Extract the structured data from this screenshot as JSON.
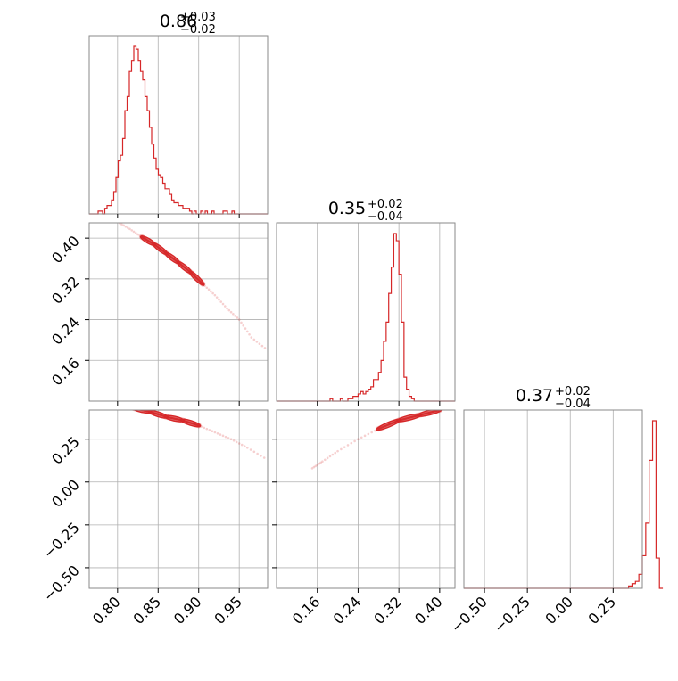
{
  "chart_data": {
    "type": "corner",
    "color": "#d62728",
    "grid": true,
    "parameters": [
      {
        "title_value": "0.86",
        "title_plus": "+0.03",
        "title_minus": "−0.02",
        "range": [
          0.765,
          0.985
        ]
      },
      {
        "title_value": "0.35",
        "title_plus": "+0.02",
        "title_minus": "−0.04",
        "range": [
          0.08,
          0.43
        ]
      },
      {
        "title_value": "0.37",
        "title_plus": "+0.02",
        "title_minus": "−0.04",
        "range": [
          -0.62,
          0.42
        ]
      }
    ],
    "ticks": {
      "p0": [
        {
          "v": 0.8,
          "label": "0.80"
        },
        {
          "v": 0.85,
          "label": "0.85"
        },
        {
          "v": 0.9,
          "label": "0.90"
        },
        {
          "v": 0.95,
          "label": "0.95"
        }
      ],
      "p1": [
        {
          "v": 0.16,
          "label": "0.16"
        },
        {
          "v": 0.24,
          "label": "0.24"
        },
        {
          "v": 0.32,
          "label": "0.32"
        },
        {
          "v": 0.4,
          "label": "0.40"
        }
      ],
      "p2": [
        {
          "v": -0.5,
          "label": "−0.50"
        },
        {
          "v": -0.25,
          "label": "−0.25"
        },
        {
          "v": 0.0,
          "label": "0.00"
        },
        {
          "v": 0.25,
          "label": "0.25"
        }
      ]
    },
    "histograms": {
      "p0": {
        "edges_start": 0.765,
        "bin_width": 0.00275,
        "counts": [
          0,
          0,
          0,
          0,
          1,
          1,
          0,
          2,
          3,
          3,
          5,
          8,
          13,
          19,
          21,
          27,
          37,
          42,
          51,
          55,
          60,
          59,
          55,
          51,
          48,
          42,
          37,
          31,
          25,
          20,
          16,
          14,
          13,
          11,
          9,
          9,
          7,
          5,
          4,
          4,
          3,
          3,
          2,
          2,
          2,
          1,
          0,
          1,
          0,
          0,
          1,
          0,
          1,
          0,
          0,
          1,
          0,
          0,
          0,
          0,
          1,
          1,
          0,
          0,
          1,
          0,
          0,
          0,
          0,
          0,
          0,
          0,
          0,
          0,
          0,
          0,
          0,
          0,
          0,
          0
        ]
      },
      "p1": {
        "edges_start": 0.08,
        "bin_width": 0.005,
        "counts": [
          0,
          0,
          0,
          0,
          0,
          0,
          0,
          0,
          0,
          0,
          0,
          0,
          0,
          0,
          0,
          0,
          0,
          0,
          0,
          0,
          0,
          1,
          0,
          0,
          0,
          1,
          0,
          0,
          1,
          1,
          2,
          2,
          3,
          4,
          3,
          4,
          5,
          6,
          9,
          9,
          12,
          17,
          25,
          33,
          45,
          56,
          70,
          67,
          53,
          33,
          10,
          5,
          2,
          1,
          0,
          0,
          0,
          0,
          0,
          0,
          0,
          0,
          0,
          0,
          0,
          0,
          0,
          0,
          0,
          0
        ]
      },
      "p2": {
        "edges_start": -0.62,
        "bin_width": 0.02,
        "counts": [
          0,
          0,
          0,
          0,
          0,
          0,
          0,
          0,
          0,
          0,
          0,
          0,
          0,
          0,
          0,
          0,
          0,
          0,
          0,
          0,
          0,
          0,
          0,
          0,
          0,
          0,
          0,
          0,
          0,
          0,
          0,
          0,
          0,
          0,
          0,
          0,
          0,
          0,
          0,
          0,
          0,
          0,
          0,
          0,
          0,
          0,
          0,
          0,
          1,
          2,
          3,
          6,
          14,
          28,
          55,
          72,
          13,
          0
        ]
      }
    },
    "joint": [
      {
        "pair": "p0-p1",
        "ridge": [
          [
            0.8,
            0.432
          ],
          [
            0.815,
            0.418
          ],
          [
            0.83,
            0.402
          ],
          [
            0.845,
            0.388
          ],
          [
            0.86,
            0.37
          ],
          [
            0.875,
            0.352
          ],
          [
            0.89,
            0.333
          ],
          [
            0.905,
            0.31
          ],
          [
            0.92,
            0.288
          ],
          [
            0.935,
            0.262
          ],
          [
            0.95,
            0.24
          ],
          [
            0.965,
            0.205
          ],
          [
            0.985,
            0.18
          ]
        ],
        "core": [
          0.83,
          0.91
        ]
      },
      {
        "pair": "p0-p2",
        "ridge": [
          [
            0.8,
            0.44
          ],
          [
            0.82,
            0.43
          ],
          [
            0.84,
            0.41
          ],
          [
            0.86,
            0.38
          ],
          [
            0.88,
            0.36
          ],
          [
            0.9,
            0.33
          ],
          [
            0.92,
            0.29
          ],
          [
            0.94,
            0.25
          ],
          [
            0.96,
            0.2
          ],
          [
            0.985,
            0.13
          ]
        ],
        "core": [
          0.82,
          0.91
        ]
      },
      {
        "pair": "p1-p2",
        "ridge": [
          [
            0.15,
            0.08
          ],
          [
            0.17,
            0.12
          ],
          [
            0.2,
            0.18
          ],
          [
            0.24,
            0.25
          ],
          [
            0.28,
            0.31
          ],
          [
            0.32,
            0.36
          ],
          [
            0.36,
            0.39
          ],
          [
            0.4,
            0.42
          ],
          [
            0.43,
            0.43
          ]
        ],
        "core": [
          0.27,
          0.42
        ]
      }
    ]
  }
}
